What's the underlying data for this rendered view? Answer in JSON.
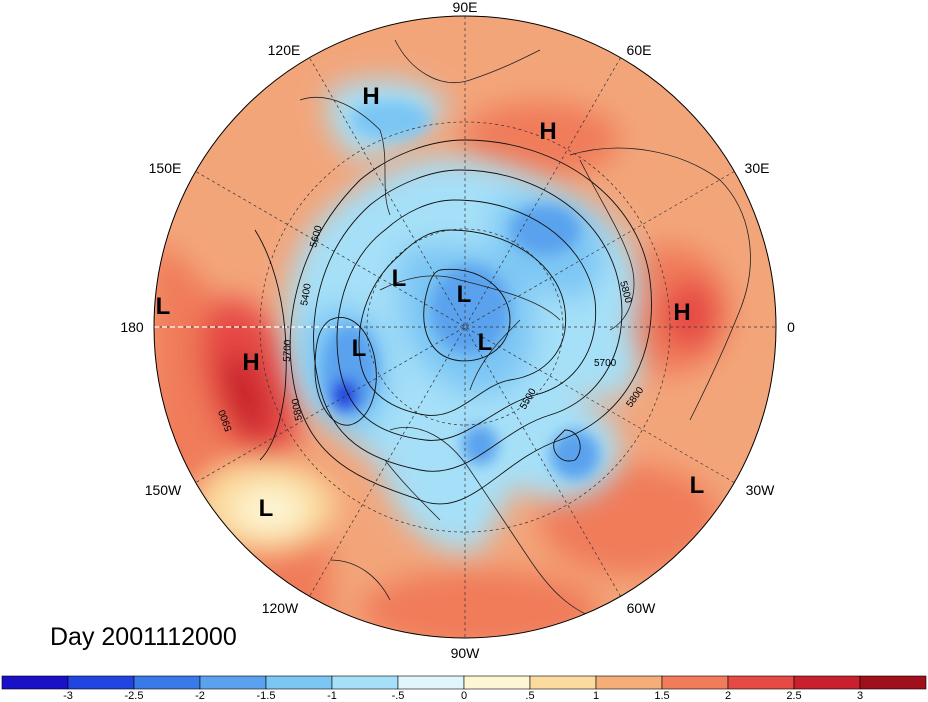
{
  "title": "Day 2001112000",
  "longitude_labels": [
    "90E",
    "60E",
    "30E",
    "0",
    "30W",
    "60W",
    "90W",
    "120W",
    "150W",
    "180",
    "150E",
    "120E"
  ],
  "pressure_centers": [
    {
      "type": "H",
      "lon": 106,
      "lat": 52
    },
    {
      "type": "H",
      "lon": 68,
      "lat": 55
    },
    {
      "type": "H",
      "lon": 12,
      "lat": 27
    },
    {
      "type": "H",
      "lon": -174,
      "lat": 33
    },
    {
      "type": "L",
      "lon": 178,
      "lat": 9
    },
    {
      "type": "L",
      "lon": 166,
      "lat": 65
    },
    {
      "type": "L",
      "lon": 66,
      "lat": 84
    },
    {
      "type": "L",
      "lon": -20,
      "lat": 77
    },
    {
      "type": "L",
      "lon": -160,
      "lat": 62
    },
    {
      "type": "L",
      "lon": -150,
      "lat": 15
    },
    {
      "type": "L",
      "lon": -28,
      "lat": 23
    }
  ],
  "contour_labels": [
    "5600",
    "5400",
    "5700",
    "5800",
    "5900",
    "5800",
    "5700",
    "5500",
    "5800"
  ],
  "colorbar": {
    "ticks": [
      "-3",
      "-2.5",
      "-2",
      "-1.5",
      "-1",
      "-.5",
      "0",
      ".5",
      "1",
      "1.5",
      "2",
      "2.5",
      "3"
    ],
    "colors": [
      "#1a10c8",
      "#2244e0",
      "#3a7ae8",
      "#5aa2ee",
      "#7cc6f4",
      "#a6e0f8",
      "#e0f6fa",
      "#fdf6d4",
      "#fbdc9e",
      "#f6ae78",
      "#f07c5a",
      "#e64a44",
      "#c8202c",
      "#a0101c"
    ]
  }
}
